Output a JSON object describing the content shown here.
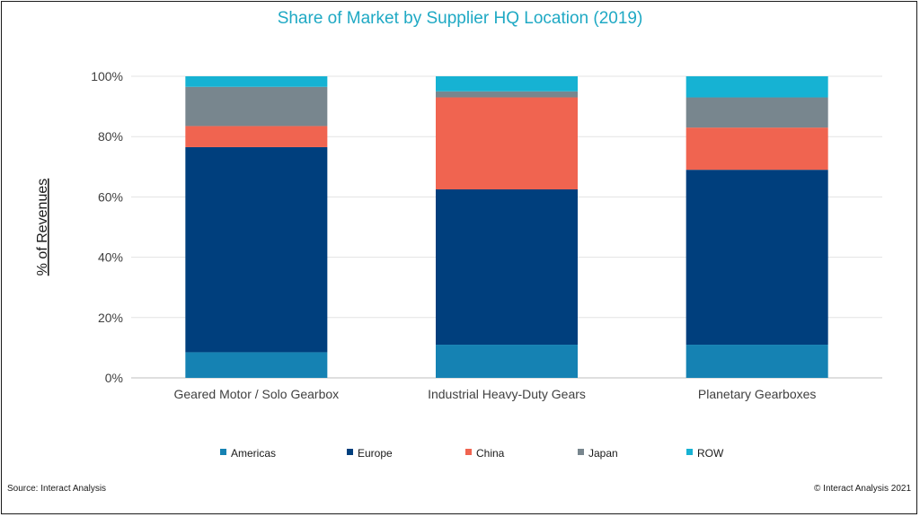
{
  "footer": {
    "source": "Source: Interact Analysis",
    "copyright": "© Interact Analysis 2021"
  },
  "colors": {
    "Americas": "#1582b3",
    "Europe": "#003f7d",
    "China": "#f06450",
    "Japan": "#78868e",
    "ROW": "#16b2d3",
    "title": "#1fa9c4",
    "grid": "#e3e3e3",
    "text": "#404040"
  },
  "chart_data": {
    "type": "bar",
    "stacked": true,
    "title": "Share of Market by Supplier HQ Location (2019)",
    "xlabel": "",
    "ylabel": "% of Revenues",
    "ylim": [
      0,
      100
    ],
    "yticks": [
      0,
      20,
      40,
      60,
      80,
      100
    ],
    "ytick_labels": [
      "0%",
      "20%",
      "40%",
      "60%",
      "80%",
      "100%"
    ],
    "grid": true,
    "legend_position": "bottom",
    "categories": [
      "Geared Motor / Solo Gearbox",
      "Industrial Heavy-Duty Gears",
      "Planetary Gearboxes"
    ],
    "series": [
      {
        "name": "Americas",
        "values": [
          8.5,
          11,
          11
        ]
      },
      {
        "name": "Europe",
        "values": [
          68,
          51.5,
          58
        ]
      },
      {
        "name": "China",
        "values": [
          7,
          30.5,
          14
        ]
      },
      {
        "name": "Japan",
        "values": [
          13,
          2,
          10
        ]
      },
      {
        "name": "ROW",
        "values": [
          3.5,
          5,
          7
        ]
      }
    ]
  }
}
